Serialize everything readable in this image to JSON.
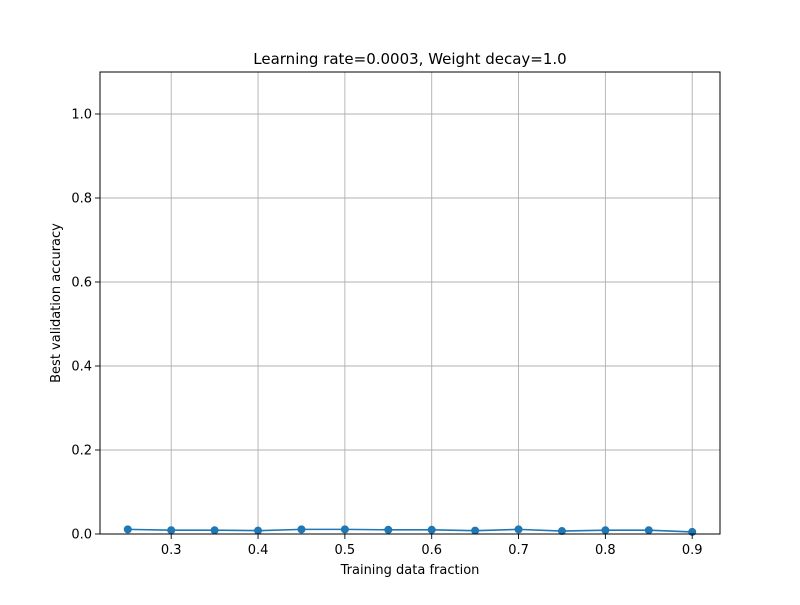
{
  "chart_data": {
    "type": "line",
    "title": "Learning rate=0.0003, Weight decay=1.0",
    "xlabel": "Training data fraction",
    "ylabel": "Best validation accuracy",
    "xlim": [
      0.218,
      0.932
    ],
    "ylim": [
      0,
      1.1
    ],
    "xticks": [
      0.3,
      0.4,
      0.5,
      0.6,
      0.7,
      0.8,
      0.9
    ],
    "xtick_labels": [
      "0.3",
      "0.4",
      "0.5",
      "0.6",
      "0.7",
      "0.8",
      "0.9"
    ],
    "yticks": [
      0.0,
      0.2,
      0.4,
      0.6,
      0.8,
      1.0
    ],
    "ytick_labels": [
      "0.0",
      "0.2",
      "0.4",
      "0.6",
      "0.8",
      "1.0"
    ],
    "grid": true,
    "series": [
      {
        "color": "#1f77b4",
        "marker": "circle",
        "x": [
          0.25,
          0.3,
          0.35,
          0.4,
          0.45,
          0.5,
          0.55,
          0.6,
          0.65,
          0.7,
          0.75,
          0.8,
          0.85,
          0.9
        ],
        "y": [
          0.011,
          0.009,
          0.009,
          0.008,
          0.011,
          0.011,
          0.01,
          0.01,
          0.008,
          0.011,
          0.007,
          0.009,
          0.009,
          0.005
        ]
      }
    ]
  }
}
